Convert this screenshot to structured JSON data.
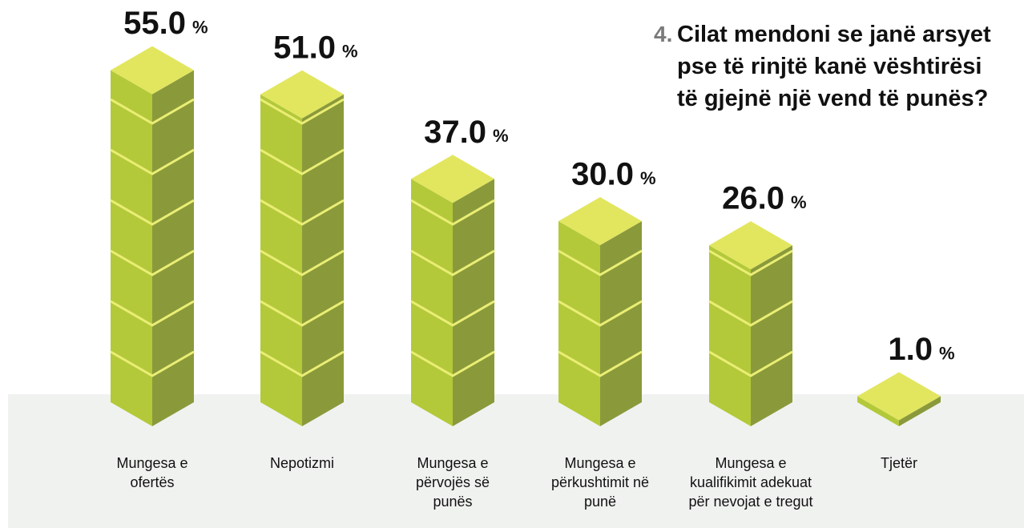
{
  "chart_data": {
    "type": "bar3d",
    "title_number": "4.",
    "title_lines": [
      "Cilat mendoni se janë arsyet",
      "pse të rinjtë kanë vështirësi",
      "të gjejnë një vend të punës?"
    ],
    "categories": [
      "Mungesa e\nofertës",
      "Nepotizmi",
      "Mungesa e\npërvojës së\npunës",
      "Mungesa e\npërkushtimit në\npunë",
      "Mungesa e\nkualifikimit adekuat\npër nevojat e tregut",
      "Tjetër"
    ],
    "values": [
      55,
      51,
      37,
      30,
      26,
      1
    ],
    "value_labels": [
      "55.0",
      "51.0",
      "37.0",
      "30.0",
      "26.0",
      "1.0"
    ],
    "value_unit": "%",
    "ylim": [
      0,
      60
    ],
    "colors": {
      "front": "#b3c93a",
      "side": "#8a9a3b",
      "top": "#e2e65f",
      "seam": "#eaee74"
    }
  }
}
